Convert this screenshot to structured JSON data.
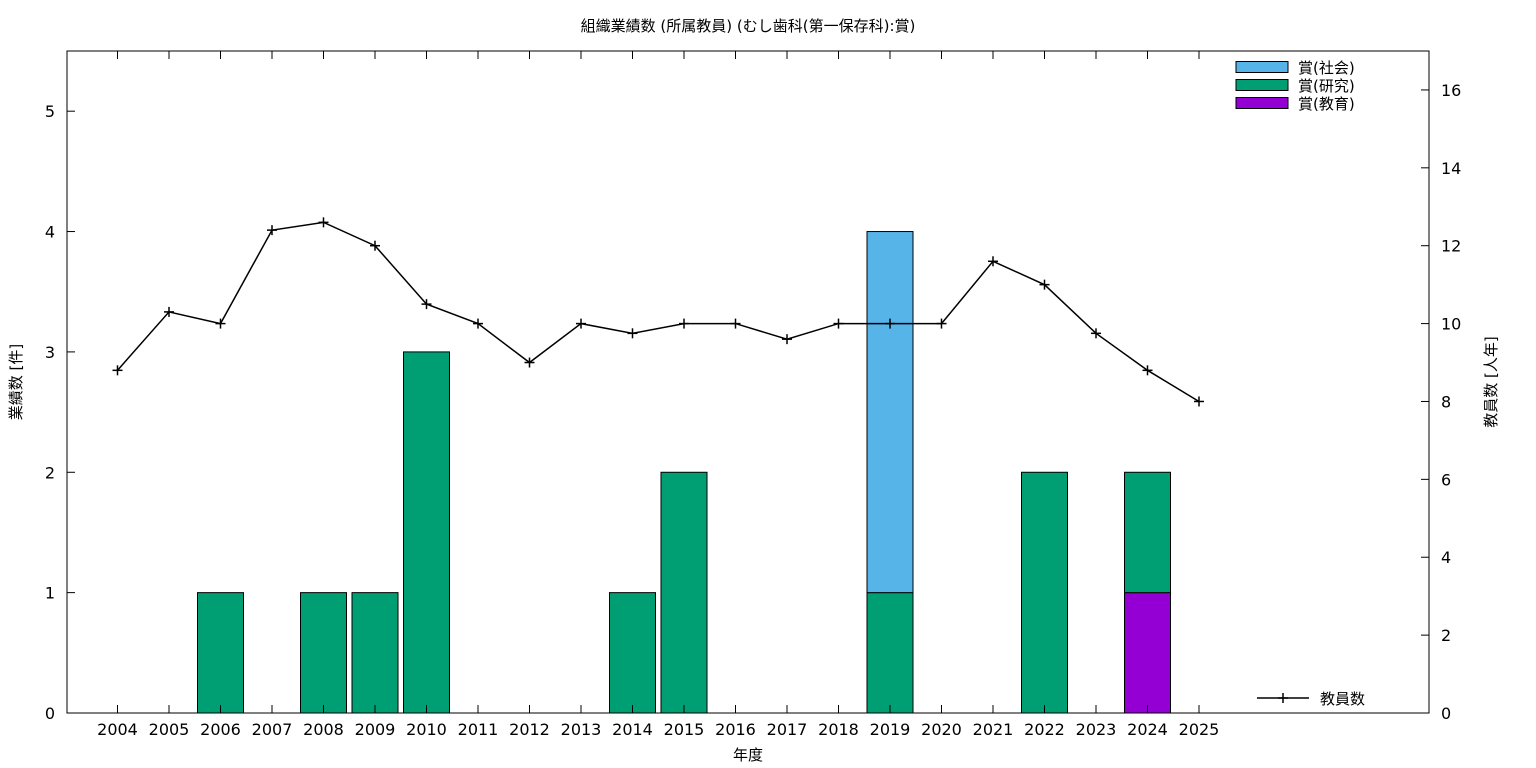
{
  "chart_data": {
    "type": "bar",
    "title": "組織業績数 (所属教員) (むし歯科(第一保存科):賞)",
    "xlabel": "年度",
    "ylabel": "業績数 [件]",
    "y2label": "教員数 [人年]",
    "ylim": [
      0,
      5.5
    ],
    "y2lim": [
      0,
      17
    ],
    "yticks": [
      0,
      1,
      2,
      3,
      4,
      5
    ],
    "y2ticks": [
      0,
      2,
      4,
      6,
      8,
      10,
      12,
      14,
      16
    ],
    "stacked": true,
    "grid": false,
    "legend_position": "top-right",
    "categories": [
      "2004",
      "2005",
      "2006",
      "2007",
      "2008",
      "2009",
      "2010",
      "2011",
      "2012",
      "2013",
      "2014",
      "2015",
      "2016",
      "2017",
      "2018",
      "2019",
      "2020",
      "2021",
      "2022",
      "2023",
      "2024",
      "2025"
    ],
    "series": [
      {
        "name": "賞(教育)",
        "color": "#9400d3",
        "values": [
          0,
          0,
          0,
          0,
          0,
          0,
          0,
          0,
          0,
          0,
          0,
          0,
          0,
          0,
          0,
          0,
          0,
          0,
          0,
          0,
          1,
          0
        ]
      },
      {
        "name": "賞(研究)",
        "color": "#009e73",
        "values": [
          0,
          0,
          1,
          0,
          1,
          1,
          3,
          0,
          0,
          0,
          1,
          2,
          0,
          0,
          0,
          1,
          0,
          0,
          2,
          0,
          1,
          0
        ]
      },
      {
        "name": "賞(社会)",
        "color": "#56b4e9",
        "values": [
          0,
          0,
          0,
          0,
          0,
          0,
          0,
          0,
          0,
          0,
          0,
          0,
          0,
          0,
          0,
          3,
          0,
          0,
          0,
          0,
          0,
          0
        ]
      }
    ],
    "line_series": {
      "name": "教員数",
      "color": "#000000",
      "axis": "y2",
      "values": [
        8.8,
        10.3,
        10.0,
        12.4,
        12.6,
        12.0,
        10.5,
        10.0,
        9.0,
        10.0,
        9.75,
        10.0,
        10.0,
        9.6,
        10.0,
        10.0,
        10.0,
        11.6,
        11.0,
        9.75,
        8.8,
        8.0
      ]
    },
    "legend_order": [
      "賞(社会)",
      "賞(研究)",
      "賞(教育)"
    ]
  }
}
